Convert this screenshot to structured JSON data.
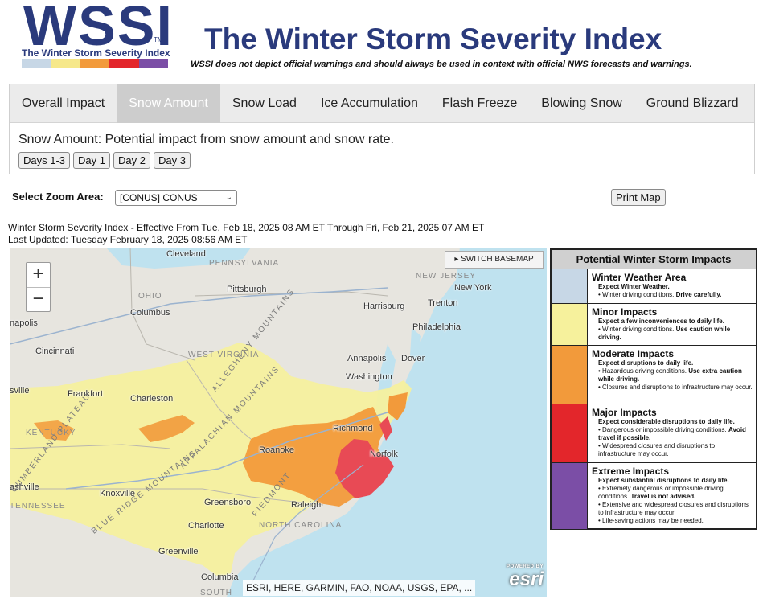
{
  "logo": {
    "word": "WSSI",
    "tm": "TM",
    "subtitle": "The Winter Storm Severity Index",
    "bar_colors": [
      "#c7d7e6",
      "#f6e88a",
      "#f29a3b",
      "#e3262b",
      "#7b4ea6"
    ]
  },
  "header": {
    "title": "The Winter Storm Severity Index",
    "disclaimer": "WSSI does not depict official warnings and should always be used in context with official NWS forecasts and warnings."
  },
  "tabs": [
    {
      "label": "Overall Impact",
      "active": false
    },
    {
      "label": "Snow Amount",
      "active": true
    },
    {
      "label": "Snow Load",
      "active": false
    },
    {
      "label": "Ice Accumulation",
      "active": false
    },
    {
      "label": "Flash Freeze",
      "active": false
    },
    {
      "label": "Blowing Snow",
      "active": false
    },
    {
      "label": "Ground Blizzard",
      "active": false
    }
  ],
  "panel": {
    "description": "Snow Amount: Potential impact from snow amount and snow rate.",
    "day_buttons": [
      "Days 1-3",
      "Day 1",
      "Day 2",
      "Day 3"
    ]
  },
  "zoom": {
    "label": "Select Zoom Area:",
    "selected": "[CONUS] CONUS",
    "chevron": "⌄"
  },
  "print_label": "Print Map",
  "effective_text": "Winter Storm Severity Index - Effective From Tue, Feb 18, 2025 08 AM ET Through Fri, Feb 21, 2025 07 AM ET",
  "updated_text": "Last Updated: Tuesday February 18, 2025 08:56 AM ET",
  "map": {
    "zoom_in": "+",
    "zoom_out": "−",
    "switch_basemap": "▸ SWITCH BASEMAP",
    "attribution": "ESRI, HERE, GARMIN, FAO, NOAA, USGS, EPA, ...",
    "powered_by": "POWERED BY",
    "esri": "esri",
    "places": [
      "Cleveland",
      "Pittsburgh",
      "Columbus",
      "Cincinnati",
      "Frankfort",
      "Charleston",
      "Harrisburg",
      "Trenton",
      "New York",
      "Philadelphia",
      "Annapolis",
      "Dover",
      "Washington",
      "Richmond",
      "Norfolk",
      "Roanoke",
      "Knoxville",
      "Greensboro",
      "Raleigh",
      "Charlotte",
      "Greenville",
      "Columbia",
      "napolis",
      "sville",
      "ashville"
    ],
    "states": [
      "PENNSYLVANIA",
      "OHIO",
      "WEST VIRGINIA",
      "KENTUCKY",
      "NEW JERSEY",
      "NORTH CAROLINA",
      "TENNESSEE",
      "SOUTH"
    ],
    "features": [
      "CUMBERLAND PLATEAU",
      "BLUE RIDGE MOUNTAINS",
      "APPALACHIAN MOUNTAINS",
      "PIEDMONT",
      "ALLEGHENY MOUNTAINS"
    ]
  },
  "legend": {
    "title": "Potential Winter Storm Impacts",
    "rows": [
      {
        "name": "Winter Weather Area",
        "color": "#c7d7e6",
        "expect": "Expect Winter Weather.",
        "bullets": [
          [
            "• Winter driving conditions. ",
            "Drive carefully."
          ]
        ]
      },
      {
        "name": "Minor Impacts",
        "color": "#f6f19c",
        "expect": "Expect a few inconveniences to daily life.",
        "bullets": [
          [
            "• Winter driving conditions. ",
            "Use caution while driving."
          ]
        ]
      },
      {
        "name": "Moderate Impacts",
        "color": "#f29a3b",
        "expect": "Expect disruptions to daily life.",
        "bullets": [
          [
            "• Hazardous driving conditions. ",
            "Use extra caution while driving."
          ],
          [
            "• Closures and disruptions to infrastructure may occur.",
            ""
          ]
        ]
      },
      {
        "name": "Major Impacts",
        "color": "#e3262b",
        "expect": "Expect considerable disruptions to daily life.",
        "bullets": [
          [
            "• Dangerous or impossible driving conditions. ",
            "Avoid travel if possible."
          ],
          [
            "• Widespread closures and disruptions to infrastructure may occur.",
            ""
          ]
        ]
      },
      {
        "name": "Extreme Impacts",
        "color": "#7b4ea6",
        "expect": "Expect substantial disruptions to daily life.",
        "bullets": [
          [
            "• Extremely dangerous or impossible driving conditions. ",
            "Travel is not advised."
          ],
          [
            "• Extensive and widespread closures and disruptions to infrastructure may occur.",
            ""
          ],
          [
            "• Life-saving actions may be needed.",
            ""
          ]
        ]
      }
    ]
  }
}
